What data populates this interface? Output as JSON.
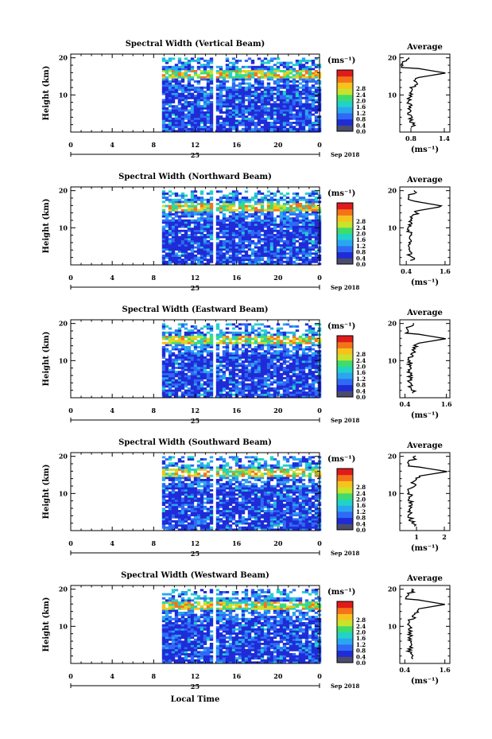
{
  "chart_data": [
    {
      "type": "heatmap",
      "title": "Spectral Width (Vertical Beam)",
      "ylabel": "Height (km)",
      "ytick_labels": [
        "10",
        "20"
      ],
      "xtick_labels": [
        "0",
        "4",
        "8",
        "12",
        "16",
        "20",
        "0"
      ],
      "day_label": "25",
      "date_label": "Sep 2018",
      "colorbar": {
        "unit": "(ms⁻¹)",
        "ticks": [
          "0.0",
          "0.4",
          "0.8",
          "1.2",
          "1.6",
          "2.0",
          "2.4",
          "2.8"
        ],
        "colors": [
          "#4b4b6e",
          "#1e2bd6",
          "#2f6af5",
          "#2aa6f0",
          "#22d2c8",
          "#3fdc6c",
          "#c9e32c",
          "#f7c21e",
          "#f4731a",
          "#e01b1b"
        ]
      },
      "data_coverage": {
        "start_hour": 8.8,
        "end_hour": 24,
        "gap_hours": [
          [
            13.5,
            13.8
          ],
          [
            17.8,
            18.0
          ],
          [
            18.35,
            18.55
          ],
          [
            20.5,
            20.7
          ]
        ]
      },
      "average": {
        "title": "Average",
        "xlabel": "(ms⁻¹)",
        "xtick_labels": [
          "0.8",
          "1.4"
        ],
        "ytick_labels": [
          "10",
          "20"
        ],
        "xlim": [
          0.6,
          1.5
        ],
        "x_ticks": [
          0.8,
          1.4
        ],
        "peak_value": 1.42,
        "peak_height": 15.9,
        "high_floor_value": 0.62
      }
    },
    {
      "type": "heatmap",
      "title": "Spectral Width (Northward Beam)",
      "ylabel": "Height (km)",
      "ytick_labels": [
        "10",
        "20"
      ],
      "xtick_labels": [
        "0",
        "4",
        "8",
        "12",
        "16",
        "20",
        "0"
      ],
      "day_label": "25",
      "date_label": "Sep 2018",
      "colorbar": {
        "unit": "(ms⁻¹)",
        "ticks": [
          "0.0",
          "0.4",
          "0.8",
          "1.2",
          "1.6",
          "2.0",
          "2.4",
          "2.8"
        ],
        "colors": [
          "#4b4b6e",
          "#1e2bd6",
          "#2f6af5",
          "#2aa6f0",
          "#22d2c8",
          "#3fdc6c",
          "#c9e32c",
          "#f7c21e",
          "#f4731a",
          "#e01b1b"
        ]
      },
      "data_coverage": {
        "start_hour": 8.8,
        "end_hour": 24,
        "gap_hours": [
          [
            13.5,
            13.8
          ],
          [
            17.8,
            18.0
          ],
          [
            18.35,
            18.55
          ],
          [
            20.5,
            20.7
          ]
        ]
      },
      "average": {
        "title": "Average",
        "xlabel": "(ms⁻¹)",
        "xtick_labels": [
          "0.4",
          "1.6"
        ],
        "ytick_labels": [
          "10",
          "20"
        ],
        "xlim": [
          0.2,
          1.75
        ],
        "x_ticks": [
          0.4,
          1.6
        ],
        "peak_value": 1.55,
        "peak_height": 15.8,
        "high_floor_value": 0.45
      }
    },
    {
      "type": "heatmap",
      "title": "Spectral Width (Eastward Beam)",
      "ylabel": "Height (km)",
      "ytick_labels": [
        "10",
        "20"
      ],
      "xtick_labels": [
        "0",
        "4",
        "8",
        "12",
        "16",
        "20",
        "0"
      ],
      "day_label": "25",
      "date_label": "Sep 2018",
      "colorbar": {
        "unit": "(ms⁻¹)",
        "ticks": [
          "0.0",
          "0.4",
          "0.8",
          "1.2",
          "1.6",
          "2.0",
          "2.4",
          "2.8"
        ],
        "colors": [
          "#4b4b6e",
          "#1e2bd6",
          "#2f6af5",
          "#2aa6f0",
          "#22d2c8",
          "#3fdc6c",
          "#c9e32c",
          "#f7c21e",
          "#f4731a",
          "#e01b1b"
        ]
      },
      "data_coverage": {
        "start_hour": 8.8,
        "end_hour": 24,
        "gap_hours": [
          [
            13.5,
            13.8
          ],
          [
            17.8,
            18.0
          ],
          [
            18.35,
            18.55
          ],
          [
            20.5,
            20.7
          ]
        ]
      },
      "average": {
        "title": "Average",
        "xlabel": "(ms⁻¹)",
        "xtick_labels": [
          "0.4",
          "1.6"
        ],
        "ytick_labels": [
          "10",
          "20"
        ],
        "xlim": [
          0.25,
          1.7
        ],
        "x_ticks": [
          0.4,
          1.6
        ],
        "peak_value": 1.58,
        "peak_height": 15.9,
        "high_floor_value": 0.4
      }
    },
    {
      "type": "heatmap",
      "title": "Spectral Width (Southward Beam)",
      "ylabel": "Height (km)",
      "ytick_labels": [
        "10",
        "20"
      ],
      "xtick_labels": [
        "0",
        "4",
        "8",
        "12",
        "16",
        "20",
        "0"
      ],
      "day_label": "25",
      "date_label": "Sep 2018",
      "colorbar": {
        "unit": "(ms⁻¹)",
        "ticks": [
          "0.0",
          "0.4",
          "0.8",
          "1.2",
          "1.6",
          "2.0",
          "2.4",
          "2.8"
        ],
        "colors": [
          "#4b4b6e",
          "#1e2bd6",
          "#2f6af5",
          "#2aa6f0",
          "#22d2c8",
          "#3fdc6c",
          "#c9e32c",
          "#f7c21e",
          "#f4731a",
          "#e01b1b"
        ]
      },
      "data_coverage": {
        "start_hour": 8.8,
        "end_hour": 24,
        "gap_hours": [
          [
            13.5,
            13.8
          ],
          [
            17.8,
            18.0
          ],
          [
            18.35,
            18.55
          ],
          [
            20.5,
            20.7
          ]
        ]
      },
      "average": {
        "title": "Average",
        "xlabel": "(ms⁻¹)",
        "xtick_labels": [
          "1",
          "2"
        ],
        "ytick_labels": [
          "10",
          "20"
        ],
        "xlim": [
          0.4,
          2.2
        ],
        "x_ticks": [
          1,
          2
        ],
        "peak_value": 2.1,
        "peak_height": 15.9,
        "high_floor_value": 0.65
      }
    },
    {
      "type": "heatmap",
      "title": "Spectral Width (Westward Beam)",
      "ylabel": "Height (km)",
      "xlabel": "Local Time",
      "ytick_labels": [
        "10",
        "20"
      ],
      "xtick_labels": [
        "0",
        "4",
        "8",
        "12",
        "16",
        "20",
        "0"
      ],
      "day_label": "25",
      "date_label": "Sep 2018",
      "colorbar": {
        "unit": "(ms⁻¹)",
        "ticks": [
          "0.0",
          "0.4",
          "0.8",
          "1.2",
          "1.6",
          "2.0",
          "2.4",
          "2.8"
        ],
        "colors": [
          "#4b4b6e",
          "#1e2bd6",
          "#2f6af5",
          "#2aa6f0",
          "#22d2c8",
          "#3fdc6c",
          "#c9e32c",
          "#f7c21e",
          "#f4731a",
          "#e01b1b"
        ]
      },
      "data_coverage": {
        "start_hour": 8.8,
        "end_hour": 24,
        "gap_hours": [
          [
            13.5,
            13.8
          ],
          [
            17.8,
            18.0
          ],
          [
            18.35,
            18.55
          ],
          [
            20.5,
            20.7
          ]
        ]
      },
      "average": {
        "title": "Average",
        "xlabel": "(ms⁻¹)",
        "xtick_labels": [
          "0.4",
          "1.6"
        ],
        "ytick_labels": [
          "10",
          "20"
        ],
        "xlim": [
          0.25,
          1.75
        ],
        "x_ticks": [
          0.4,
          1.6
        ],
        "peak_value": 1.6,
        "peak_height": 15.9,
        "high_floor_value": 0.42
      }
    }
  ]
}
